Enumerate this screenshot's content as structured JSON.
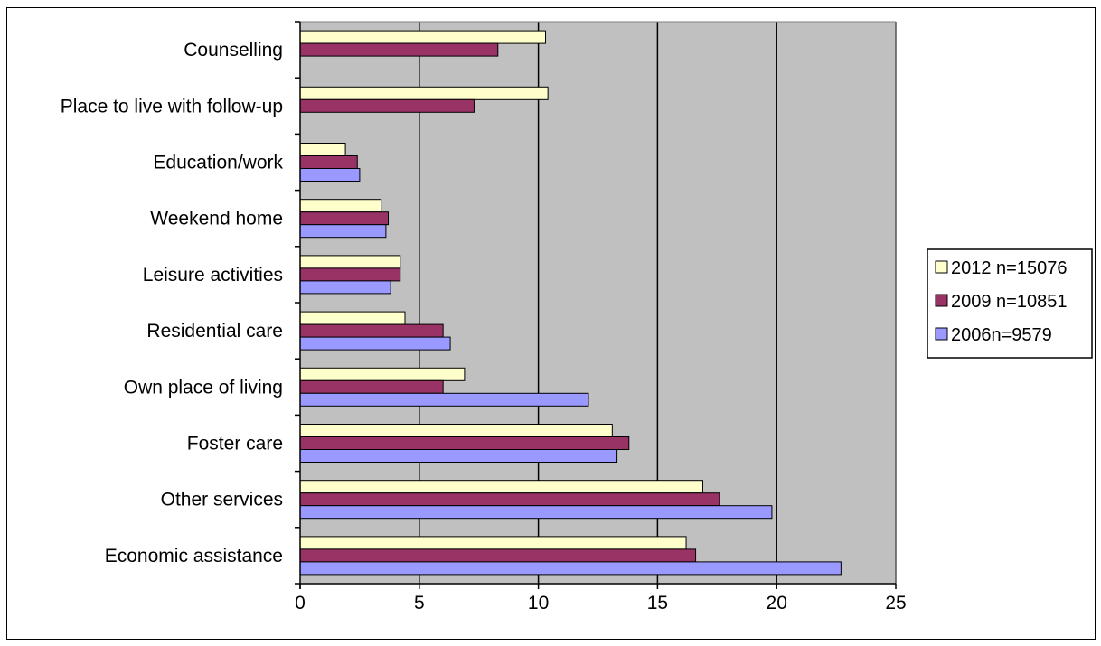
{
  "chart_data": {
    "type": "bar",
    "orientation": "horizontal",
    "title": "",
    "xlabel": "",
    "ylabel": "",
    "xlim": [
      0,
      25
    ],
    "x_ticks": [
      0,
      5,
      10,
      15,
      20,
      25
    ],
    "grid": true,
    "plot_background": "#C0C0C0",
    "legend_position": "right",
    "categories": [
      "Counselling",
      "Place to live with follow-up",
      "Education/work",
      "Weekend home",
      "Leisure activities",
      "Residential care",
      "Own place of living",
      "Foster care",
      "Other services",
      "Economic assistance"
    ],
    "series": [
      {
        "name": "2012 n=15076",
        "color": "#FFFFCC",
        "values": [
          10.3,
          10.4,
          1.9,
          3.4,
          4.2,
          4.4,
          6.9,
          13.1,
          16.9,
          16.2
        ]
      },
      {
        "name": "2009 n=10851",
        "color": "#993366",
        "values": [
          8.3,
          7.3,
          2.4,
          3.7,
          4.2,
          6.0,
          6.0,
          13.8,
          17.6,
          16.6
        ]
      },
      {
        "name": "2006n=9579",
        "color": "#9999FF",
        "values": [
          null,
          null,
          2.5,
          3.6,
          3.8,
          6.3,
          12.1,
          13.3,
          19.8,
          22.7
        ]
      }
    ]
  }
}
